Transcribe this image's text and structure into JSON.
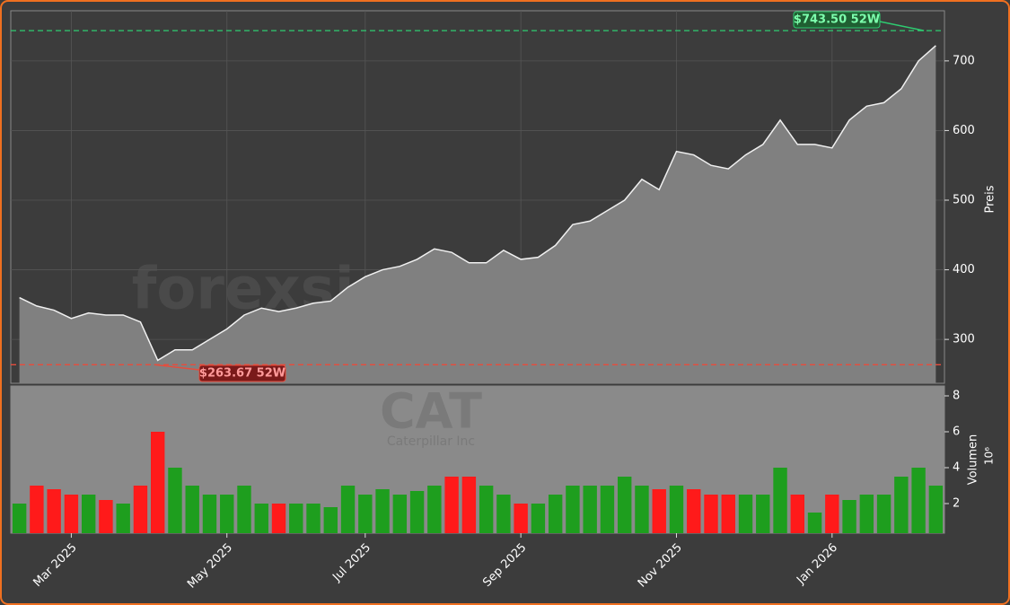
{
  "chart_data": [
    {
      "type": "line",
      "ylabel": "Preis",
      "categories": [
        null,
        null,
        null,
        "Mar 2025",
        null,
        null,
        null,
        null,
        null,
        null,
        null,
        null,
        "May 2025",
        null,
        null,
        null,
        null,
        null,
        null,
        null,
        "Jul 2025",
        null,
        null,
        null,
        null,
        null,
        null,
        null,
        null,
        "Sep 2025",
        null,
        null,
        null,
        null,
        null,
        null,
        null,
        null,
        "Nov 2025",
        null,
        null,
        null,
        null,
        null,
        null,
        null,
        null,
        "Jan 2026",
        null,
        null,
        null,
        null,
        null,
        null
      ],
      "series": [
        {
          "name": "CAT",
          "color": "#f0f0f0",
          "fill": "#808080",
          "values": [
            360,
            348,
            342,
            330,
            338,
            335,
            335,
            325,
            270,
            285,
            285,
            300,
            315,
            335,
            345,
            340,
            345,
            352,
            355,
            375,
            390,
            400,
            405,
            415,
            430,
            425,
            410,
            410,
            428,
            415,
            418,
            435,
            465,
            470,
            485,
            500,
            530,
            515,
            570,
            565,
            550,
            545,
            565,
            580,
            615,
            580,
            580,
            575,
            615,
            635,
            640,
            660,
            700,
            722
          ]
        }
      ],
      "ylim": [
        237,
        772
      ],
      "yticks": [
        300,
        400,
        500,
        600,
        700
      ],
      "grid": true,
      "high": 743.5,
      "high_label": "$743.50 52W",
      "high_color": "#2ecc71",
      "low": 263.67,
      "low_label": "$263.67 52W",
      "low_color": "#e74c3c",
      "watermark": "forexsignale.trade"
    },
    {
      "type": "bar",
      "ylabel": "Volumen",
      "offset_label": "10⁶",
      "up_color": "#1e9e1e",
      "down_color": "#ff1a1a",
      "values": [
        2,
        3,
        2.8,
        2.5,
        2.5,
        2.2,
        2,
        3,
        6,
        4,
        3,
        2.5,
        2.5,
        3,
        2,
        2,
        2,
        2,
        1.8,
        3,
        2.5,
        2.8,
        2.5,
        2.7,
        3,
        3.5,
        3.5,
        3,
        2.5,
        2,
        2,
        2.5,
        3,
        3,
        3,
        3.5,
        3,
        2.8,
        3,
        2.8,
        2.5,
        2.5,
        2.5,
        2.5,
        4,
        2.5,
        1.5,
        2.5,
        2.2,
        2.5,
        2.5,
        3.5,
        4,
        3
      ],
      "ylim": [
        0.35,
        8.55
      ],
      "yticks": [
        2,
        4,
        6,
        8
      ],
      "ticker": "CAT",
      "company": "Caterpillar Inc"
    }
  ]
}
